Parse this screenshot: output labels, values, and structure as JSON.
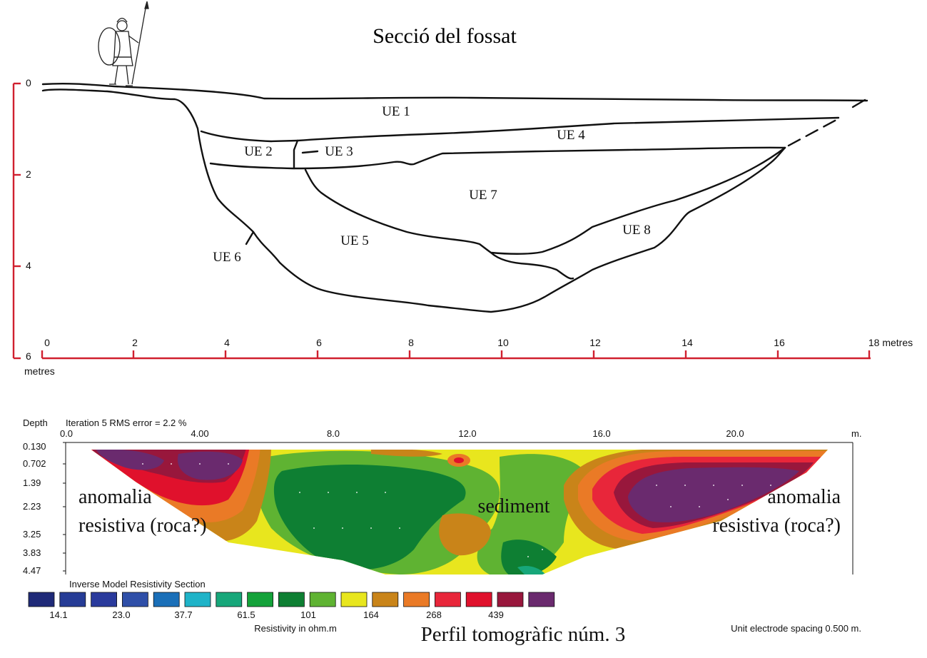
{
  "section": {
    "title": "Secció del fossat",
    "units": [
      {
        "id": "UE 1",
        "label": "UE 1"
      },
      {
        "id": "UE 2",
        "label": "UE 2"
      },
      {
        "id": "UE 3",
        "label": "UE 3"
      },
      {
        "id": "UE 4",
        "label": "UE 4"
      },
      {
        "id": "UE 5",
        "label": "UE 5"
      },
      {
        "id": "UE 6",
        "label": "UE 6"
      },
      {
        "id": "UE 7",
        "label": "UE 7"
      },
      {
        "id": "UE 8",
        "label": "UE 8"
      }
    ],
    "horizontal_scale": {
      "ticks": [
        "0",
        "2",
        "4",
        "6",
        "8",
        "10",
        "12",
        "14",
        "16"
      ],
      "end_label": "18 metres",
      "color": "#d0202f"
    },
    "vertical_scale": {
      "ticks": [
        "0",
        "2",
        "4",
        "6"
      ],
      "unit_label": "metres",
      "color": "#d0202f"
    }
  },
  "tomography": {
    "depth_label": "Depth",
    "iteration_label": "Iteration 5 RMS error = 2.2 %",
    "x_ticks": [
      "0.0",
      "4.00",
      "8.0",
      "12.0",
      "16.0",
      "20.0"
    ],
    "x_unit": "m.",
    "depth_ticks": [
      "0.130",
      "0.702",
      "1.39",
      "2.23",
      "3.25",
      "3.83",
      "4.47"
    ],
    "annotations": {
      "left_line1": "anomalia",
      "left_line2": "resistiva (roca?)",
      "center": "sediment",
      "right_line1": "anomalia",
      "right_line2": "resistiva (roca?)"
    },
    "legend": {
      "title": "Inverse Model Resistivity Section",
      "colors": [
        "#1f2a78",
        "#263c96",
        "#2a3a9c",
        "#2f4fa8",
        "#1a6fb8",
        "#1fb3c8",
        "#17a77a",
        "#14a23a",
        "#0e7f33",
        "#5fb332",
        "#e8e61e",
        "#c98419",
        "#ea7a26",
        "#e8263a",
        "#e0112c",
        "#98173c",
        "#6a2a6e"
      ],
      "values": [
        "14.1",
        "23.0",
        "37.7",
        "61.5",
        "101",
        "164",
        "268",
        "439"
      ],
      "axis_label": "Resistivity in ohm.m"
    },
    "electrode_spacing": "Unit electrode spacing 0.500 m.",
    "caption": "Perfil tomogràfic núm. 3"
  }
}
